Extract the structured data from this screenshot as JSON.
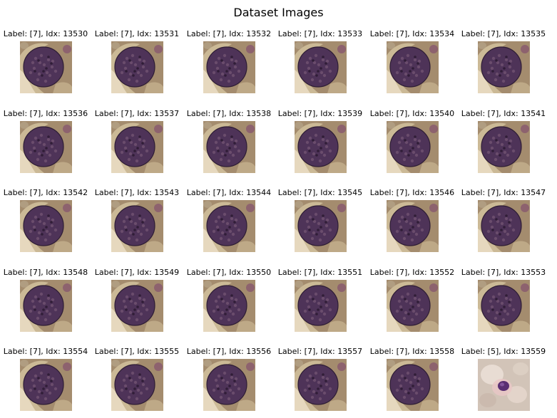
{
  "figure": {
    "title": "Dataset Images"
  },
  "colors": {
    "sample_background": "#a48c6e",
    "sample_blob": "#4e3358",
    "outlier_background": "#d2c4b8",
    "outlier_blob": "#5a2f72"
  },
  "samples": [
    {
      "label": "Label: [7], Idx: 13530",
      "class": 7,
      "kind": "cell-smear"
    },
    {
      "label": "Label: [7], Idx: 13531",
      "class": 7,
      "kind": "cell-smear"
    },
    {
      "label": "Label: [7], Idx: 13532",
      "class": 7,
      "kind": "cell-smear"
    },
    {
      "label": "Label: [7], Idx: 13533",
      "class": 7,
      "kind": "cell-smear"
    },
    {
      "label": "Label: [7], Idx: 13534",
      "class": 7,
      "kind": "cell-smear"
    },
    {
      "label": "Label: [7], Idx: 13535",
      "class": 7,
      "kind": "cell-smear"
    },
    {
      "label": "Label: [7], Idx: 13536",
      "class": 7,
      "kind": "cell-smear"
    },
    {
      "label": "Label: [7], Idx: 13537",
      "class": 7,
      "kind": "cell-smear"
    },
    {
      "label": "Label: [7], Idx: 13538",
      "class": 7,
      "kind": "cell-smear"
    },
    {
      "label": "Label: [7], Idx: 13539",
      "class": 7,
      "kind": "cell-smear"
    },
    {
      "label": "Label: [7], Idx: 13540",
      "class": 7,
      "kind": "cell-smear"
    },
    {
      "label": "Label: [7], Idx: 13541",
      "class": 7,
      "kind": "cell-smear"
    },
    {
      "label": "Label: [7], Idx: 13542",
      "class": 7,
      "kind": "cell-smear"
    },
    {
      "label": "Label: [7], Idx: 13543",
      "class": 7,
      "kind": "cell-smear"
    },
    {
      "label": "Label: [7], Idx: 13544",
      "class": 7,
      "kind": "cell-smear"
    },
    {
      "label": "Label: [7], Idx: 13545",
      "class": 7,
      "kind": "cell-smear"
    },
    {
      "label": "Label: [7], Idx: 13546",
      "class": 7,
      "kind": "cell-smear"
    },
    {
      "label": "Label: [7], Idx: 13547",
      "class": 7,
      "kind": "cell-smear"
    },
    {
      "label": "Label: [7], Idx: 13548",
      "class": 7,
      "kind": "cell-smear"
    },
    {
      "label": "Label: [7], Idx: 13549",
      "class": 7,
      "kind": "cell-smear"
    },
    {
      "label": "Label: [7], Idx: 13550",
      "class": 7,
      "kind": "cell-smear"
    },
    {
      "label": "Label: [7], Idx: 13551",
      "class": 7,
      "kind": "cell-smear"
    },
    {
      "label": "Label: [7], Idx: 13552",
      "class": 7,
      "kind": "cell-smear"
    },
    {
      "label": "Label: [7], Idx: 13553",
      "class": 7,
      "kind": "cell-smear"
    },
    {
      "label": "Label: [7], Idx: 13554",
      "class": 7,
      "kind": "cell-smear"
    },
    {
      "label": "Label: [7], Idx: 13555",
      "class": 7,
      "kind": "cell-smear"
    },
    {
      "label": "Label: [7], Idx: 13556",
      "class": 7,
      "kind": "cell-smear"
    },
    {
      "label": "Label: [7], Idx: 13557",
      "class": 7,
      "kind": "cell-smear"
    },
    {
      "label": "Label: [7], Idx: 13558",
      "class": 7,
      "kind": "cell-smear"
    },
    {
      "label": "Label: [5], Idx: 13559",
      "class": 5,
      "kind": "pale-cell"
    }
  ]
}
